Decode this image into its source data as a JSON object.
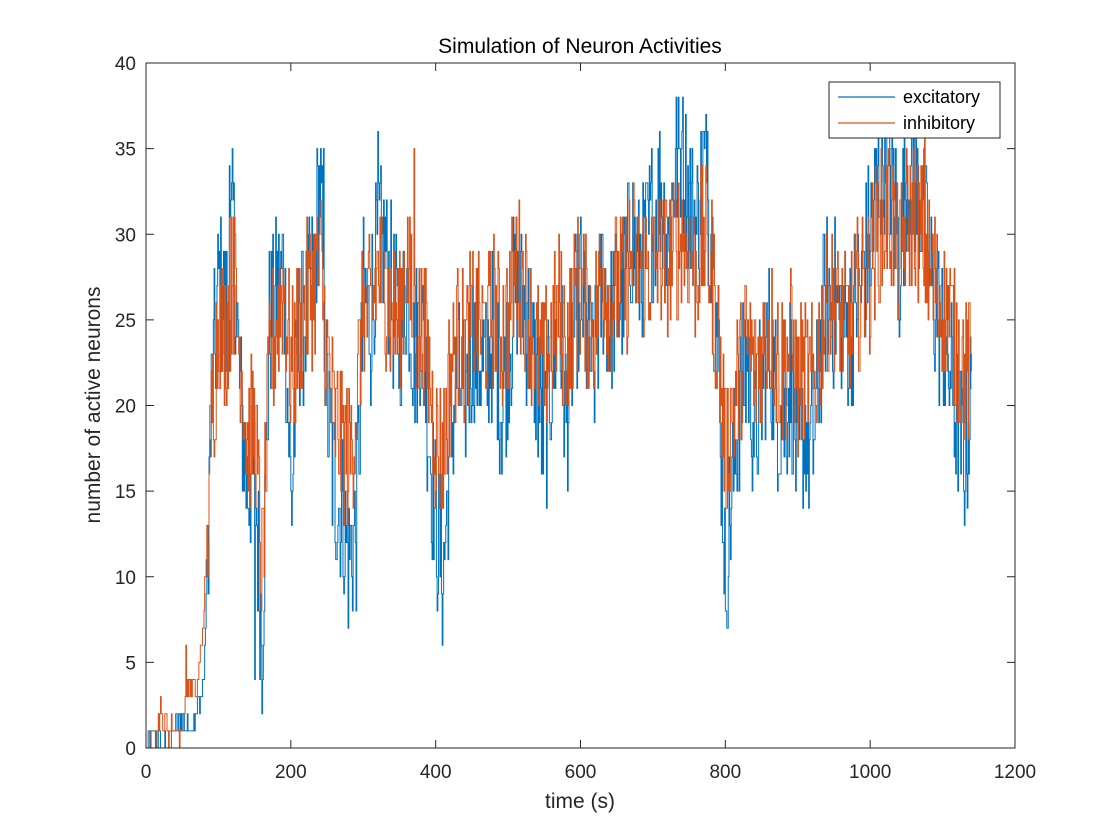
{
  "chart_data": {
    "type": "line",
    "title": "Simulation of Neuron Activities",
    "xlabel": "time (s)",
    "ylabel": "number of active neurons",
    "xlim": [
      0,
      1200
    ],
    "ylim": [
      0,
      40
    ],
    "xticks": [
      0,
      200,
      400,
      600,
      800,
      1000,
      1200
    ],
    "yticks": [
      0,
      5,
      10,
      15,
      20,
      25,
      30,
      35,
      40
    ],
    "grid": false,
    "legend": "top-right",
    "colors": {
      "excitatory": "#0072BD",
      "inhibitory": "#D95319",
      "axis": "#262626"
    },
    "series": [
      {
        "name": "excitatory",
        "color": "#0072BD",
        "x": [
          0,
          10,
          20,
          30,
          40,
          50,
          60,
          70,
          80,
          90,
          100,
          110,
          120,
          130,
          140,
          150,
          160,
          170,
          180,
          190,
          200,
          210,
          220,
          230,
          240,
          250,
          260,
          270,
          280,
          290,
          300,
          310,
          320,
          330,
          340,
          350,
          360,
          370,
          380,
          390,
          400,
          410,
          420,
          430,
          440,
          450,
          460,
          470,
          480,
          490,
          500,
          510,
          520,
          530,
          540,
          550,
          560,
          570,
          580,
          590,
          600,
          610,
          620,
          630,
          640,
          650,
          660,
          670,
          680,
          690,
          700,
          710,
          720,
          730,
          740,
          750,
          760,
          770,
          780,
          790,
          800,
          810,
          820,
          830,
          840,
          850,
          860,
          870,
          880,
          890,
          900,
          910,
          920,
          930,
          940,
          950,
          960,
          970,
          980,
          990,
          1000,
          1010,
          1020,
          1030,
          1040,
          1050,
          1060,
          1070,
          1080,
          1090,
          1100,
          1110,
          1120,
          1130,
          1140
        ],
        "y": [
          0,
          1,
          0,
          0,
          1,
          2,
          1,
          2,
          4,
          20,
          27,
          25,
          31,
          20,
          15,
          16,
          6,
          25,
          26,
          28,
          14,
          24,
          25,
          27,
          33,
          20,
          15,
          14,
          11,
          13,
          26,
          25,
          30,
          29,
          26,
          24,
          27,
          23,
          25,
          19,
          13,
          10,
          18,
          22,
          20,
          24,
          23,
          22,
          25,
          20,
          23,
          27,
          26,
          24,
          21,
          18,
          22,
          25,
          19,
          24,
          27,
          23,
          22,
          28,
          25,
          26,
          27,
          30,
          28,
          29,
          31,
          33,
          29,
          34,
          35,
          32,
          30,
          34,
          30,
          23,
          10,
          16,
          20,
          23,
          18,
          21,
          24,
          20,
          19,
          22,
          16,
          19,
          17,
          23,
          27,
          26,
          25,
          24,
          26,
          28,
          30,
          33,
          35,
          34,
          28,
          34,
          33,
          32,
          28,
          26,
          24,
          22,
          19,
          17,
          21
        ],
        "peaks": [
          {
            "x": 115,
            "y": 34
          },
          {
            "x": 150,
            "y": 4
          },
          {
            "x": 245,
            "y": 35
          },
          {
            "x": 320,
            "y": 36
          },
          {
            "x": 410,
            "y": 9
          },
          {
            "x": 740,
            "y": 36
          },
          {
            "x": 775,
            "y": 36
          },
          {
            "x": 800,
            "y": 8
          },
          {
            "x": 1060,
            "y": 36
          }
        ]
      },
      {
        "name": "inhibitory",
        "color": "#D95319",
        "x": [
          0,
          10,
          20,
          30,
          40,
          50,
          60,
          70,
          80,
          90,
          100,
          110,
          120,
          130,
          140,
          150,
          160,
          170,
          180,
          190,
          200,
          210,
          220,
          230,
          240,
          250,
          260,
          270,
          280,
          290,
          300,
          310,
          320,
          330,
          340,
          350,
          360,
          370,
          380,
          390,
          400,
          410,
          420,
          430,
          440,
          450,
          460,
          470,
          480,
          490,
          500,
          510,
          520,
          530,
          540,
          550,
          560,
          570,
          580,
          590,
          600,
          610,
          620,
          630,
          640,
          650,
          660,
          670,
          680,
          690,
          700,
          710,
          720,
          730,
          740,
          750,
          760,
          770,
          780,
          790,
          800,
          810,
          820,
          830,
          840,
          850,
          860,
          870,
          880,
          890,
          900,
          910,
          920,
          930,
          940,
          950,
          960,
          970,
          980,
          990,
          1000,
          1010,
          1020,
          1030,
          1040,
          1050,
          1060,
          1070,
          1080,
          1090,
          1100,
          1110,
          1120,
          1130,
          1140
        ],
        "y": [
          0,
          0,
          2,
          1,
          1,
          1,
          4,
          3,
          8,
          19,
          25,
          24,
          28,
          23,
          18,
          19,
          10,
          22,
          25,
          27,
          22,
          24,
          26,
          27,
          29,
          23,
          19,
          18,
          17,
          20,
          26,
          25,
          28,
          27,
          25,
          25,
          29,
          24,
          25,
          22,
          18,
          17,
          22,
          24,
          23,
          25,
          25,
          24,
          26,
          24,
          25,
          28,
          27,
          25,
          23,
          22,
          24,
          26,
          23,
          26,
          27,
          25,
          25,
          28,
          26,
          27,
          27,
          29,
          28,
          28,
          28,
          29,
          28,
          29,
          30,
          29,
          28,
          30,
          28,
          24,
          17,
          20,
          22,
          24,
          22,
          23,
          25,
          23,
          22,
          24,
          21,
          22,
          21,
          24,
          26,
          26,
          25,
          25,
          26,
          27,
          28,
          30,
          31,
          31,
          28,
          31,
          31,
          30,
          28,
          27,
          26,
          25,
          23,
          22,
          22
        ],
        "peaks": [
          {
            "x": 55,
            "y": 6
          },
          {
            "x": 120,
            "y": 31
          },
          {
            "x": 370,
            "y": 35
          },
          {
            "x": 1075,
            "y": 37
          }
        ]
      }
    ]
  }
}
